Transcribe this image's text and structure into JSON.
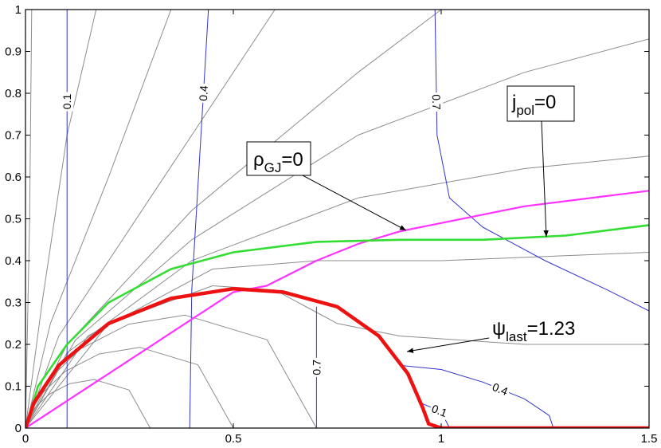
{
  "chart_data": {
    "type": "line",
    "xlim": [
      0,
      1.5
    ],
    "ylim": [
      0,
      1
    ],
    "xticks": [
      0,
      0.5,
      1,
      1.5
    ],
    "yticks": [
      0,
      0.1,
      0.2,
      0.3,
      0.4,
      0.5,
      0.6,
      0.7,
      0.8,
      0.9,
      1
    ],
    "series": [
      {
        "color": "#8c8c8c",
        "x": [
          0,
          0.01,
          0.015
        ],
        "values": [
          0,
          0.5,
          1
        ]
      },
      {
        "color": "#8c8c8c",
        "x": [
          0,
          0.04,
          0.1,
          0.17
        ],
        "values": [
          0,
          0.3,
          0.7,
          1
        ]
      },
      {
        "color": "#8c8c8c",
        "x": [
          0,
          0.06,
          0.2,
          0.35
        ],
        "values": [
          0,
          0.25,
          0.6,
          1
        ]
      },
      {
        "color": "#8c8c8c",
        "x": [
          0,
          0.08,
          0.3,
          0.6
        ],
        "values": [
          0,
          0.22,
          0.55,
          1
        ]
      },
      {
        "color": "#8c8c8c",
        "x": [
          0,
          0.1,
          0.4,
          0.8,
          1.0
        ],
        "values": [
          0,
          0.2,
          0.52,
          0.85,
          1
        ]
      },
      {
        "color": "#8c8c8c",
        "x": [
          0,
          0.12,
          0.4,
          0.8,
          1.2,
          1.5
        ],
        "values": [
          0,
          0.21,
          0.45,
          0.7,
          0.85,
          0.93
        ]
      },
      {
        "color": "#8c8c8c",
        "x": [
          0,
          0.1,
          0.4,
          0.8,
          1.2,
          1.5
        ],
        "values": [
          0,
          0.18,
          0.4,
          0.55,
          0.62,
          0.65
        ]
      },
      {
        "color": "#8c8c8c",
        "x": [
          0,
          0.15,
          0.45,
          0.7,
          1.0,
          1.5
        ],
        "values": [
          0,
          0.22,
          0.38,
          0.4,
          0.4,
          0.42
        ]
      },
      {
        "color": "#8c8c8c",
        "x": [
          0,
          0.2,
          0.45,
          0.6,
          0.75,
          0.9,
          1.2,
          1.5
        ],
        "values": [
          0,
          0.25,
          0.34,
          0.33,
          0.25,
          0.22,
          0.2,
          0.2
        ]
      },
      {
        "color": "#8c8c8c",
        "x": [
          0.3,
          0.249,
          0.165,
          0.106,
          0.057,
          0.023,
          0.005,
          0
        ],
        "values": [
          0,
          0.091,
          0.116,
          0.106,
          0.081,
          0.049,
          0.019,
          0
        ]
      },
      {
        "color": "#8c8c8c",
        "x": [
          0.5,
          0.415,
          0.275,
          0.177,
          0.095,
          0.038,
          0.009,
          0
        ],
        "values": [
          0,
          0.151,
          0.193,
          0.177,
          0.135,
          0.081,
          0.032,
          0
        ]
      },
      {
        "color": "#8c8c8c",
        "x": [
          0.7,
          0.581,
          0.384,
          0.248,
          0.132,
          0.053,
          0.012,
          0
        ],
        "values": [
          0,
          0.211,
          0.27,
          0.248,
          0.189,
          0.113,
          0.045,
          0
        ]
      },
      {
        "color": "#3333cc",
        "level": 0.1,
        "x": [
          0.1,
          0.1
        ],
        "values": [
          0,
          1
        ]
      },
      {
        "color": "#3333cc",
        "level": 0.4,
        "x": [
          0.395,
          0.4,
          0.44
        ],
        "values": [
          0,
          0.33,
          1
        ]
      },
      {
        "color": "#3333cc",
        "level": 0.7,
        "x": [
          0.7,
          0.7
        ],
        "values": [
          0,
          0.29
        ]
      },
      {
        "color": "#3333cc",
        "level": 0.7,
        "x": [
          0.985,
          0.99,
          1.02,
          1.1,
          1.25,
          1.4,
          1.5
        ],
        "values": [
          1,
          0.7,
          0.55,
          0.48,
          0.4,
          0.33,
          0.28
        ]
      },
      {
        "color": "#3333cc",
        "level": 0.4,
        "x": [
          0.9,
          1.0,
          1.1,
          1.2,
          1.26,
          1.27
        ],
        "values": [
          0.15,
          0.14,
          0.11,
          0.07,
          0.03,
          0
        ]
      },
      {
        "color": "#3333cc",
        "level": 0.1,
        "x": [
          0.95,
          1.0,
          1.02
        ],
        "values": [
          0.06,
          0.04,
          0
        ]
      },
      {
        "color": "#ff33ff",
        "x": [
          0,
          0.5,
          0.58,
          0.7,
          0.8,
          0.9,
          1.0,
          1.2,
          1.5
        ],
        "values": [
          0,
          0.325,
          0.34,
          0.4,
          0.44,
          0.47,
          0.49,
          0.53,
          0.567
        ]
      },
      {
        "color": "#33dd33",
        "x": [
          0,
          0.03,
          0.1,
          0.2,
          0.35,
          0.5,
          0.7,
          0.9,
          1.1,
          1.3,
          1.5
        ],
        "values": [
          0,
          0.1,
          0.2,
          0.3,
          0.38,
          0.42,
          0.445,
          0.45,
          0.45,
          0.46,
          0.485
        ]
      },
      {
        "color": "#ee1111",
        "x": [
          0,
          0.02,
          0.08,
          0.2,
          0.35,
          0.5,
          0.62,
          0.75,
          0.85,
          0.92,
          0.955,
          0.97,
          1.0,
          1.5
        ],
        "values": [
          0,
          0.06,
          0.15,
          0.25,
          0.31,
          0.333,
          0.325,
          0.29,
          0.22,
          0.13,
          0.05,
          0.01,
          0,
          0
        ]
      }
    ],
    "annotations": [
      {
        "text": "ρ",
        "sub": "GJ",
        "rest": "=0"
      },
      {
        "text": "j",
        "sub": "pol",
        "rest": "=0"
      },
      {
        "text": "ψ",
        "sub": "last",
        "rest": "=1.23"
      }
    ]
  }
}
